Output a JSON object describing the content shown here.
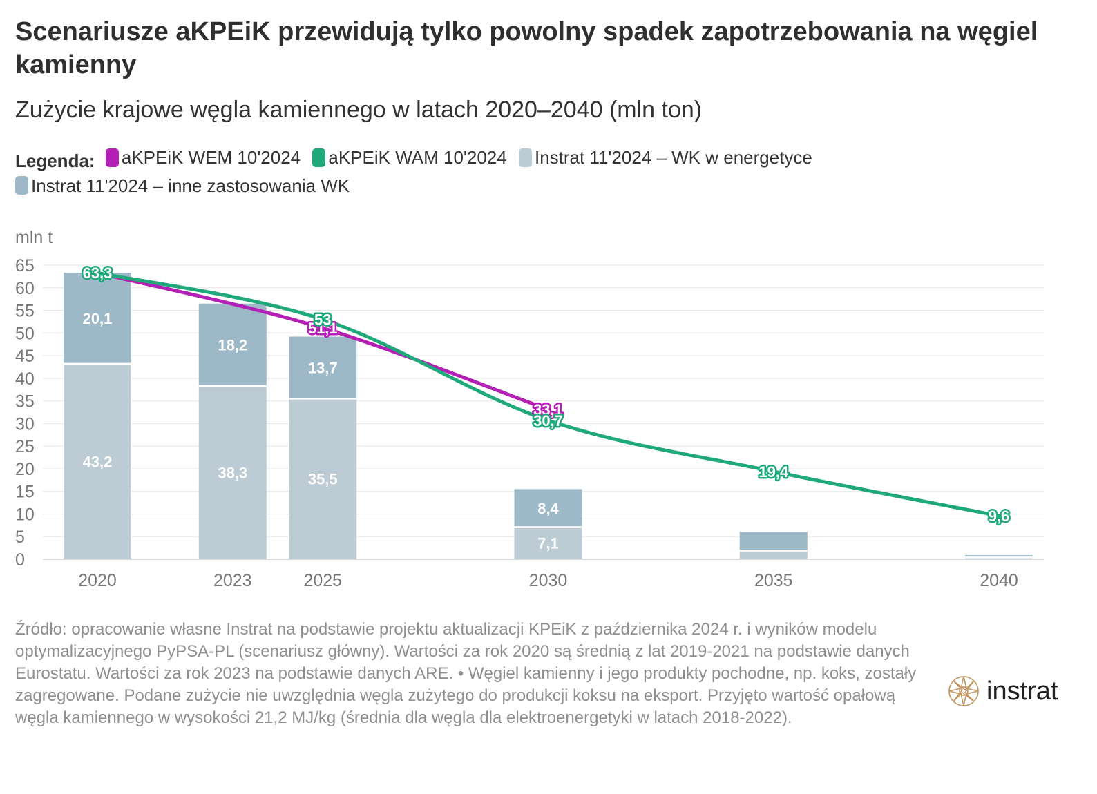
{
  "title": "Scenariusze aKPEiK przewidują tylko powolny spadek zapotrzebowania na węgiel kamienny",
  "subtitle": "Zużycie krajowe węgla kamiennego w latach 2020–2040 (mln ton)",
  "legend": {
    "label": "Legenda:",
    "items": [
      {
        "label": "aKPEiK WEM 10'2024",
        "color": "#b41fb5"
      },
      {
        "label": "aKPEiK WAM 10'2024",
        "color": "#1fa97a"
      },
      {
        "label": "Instrat 11'2024 – WK w energetyce",
        "color": "#bccbd4"
      },
      {
        "label": "Instrat 11'2024 – inne zastosowania WK",
        "color": "#9db9c8"
      }
    ]
  },
  "chart_data": {
    "type": "bar",
    "ylabel": "mln t",
    "ylim": [
      0,
      65
    ],
    "yticks": [
      0,
      5,
      10,
      15,
      20,
      25,
      30,
      35,
      40,
      45,
      50,
      55,
      60,
      65
    ],
    "categories": [
      "2020",
      "2023",
      "2025",
      "2030",
      "2035",
      "2040"
    ],
    "stacked_bars": [
      {
        "name": "Instrat 11'2024 – WK w energetyce",
        "color": "#bccbd4",
        "values": [
          43.2,
          38.3,
          35.5,
          7.1,
          1.9,
          0.4
        ],
        "labels": [
          "43,2",
          "38,3",
          "35,5",
          "7,1",
          "",
          ""
        ]
      },
      {
        "name": "Instrat 11'2024 – inne zastosowania WK",
        "color": "#9db9c8",
        "values": [
          20.1,
          18.2,
          13.7,
          8.4,
          4.2,
          0.5
        ],
        "labels": [
          "20,1",
          "18,2",
          "13,7",
          "8,4",
          "",
          ""
        ]
      }
    ],
    "lines": [
      {
        "name": "aKPEiK WEM 10'2024",
        "color": "#b41fb5",
        "x": [
          2020,
          2025,
          2030
        ],
        "y": [
          63.3,
          51.1,
          33.1
        ],
        "labels": [
          "",
          "51,1",
          "33,1"
        ]
      },
      {
        "name": "aKPEiK WAM 10'2024",
        "color": "#1fa97a",
        "x": [
          2020,
          2025,
          2030,
          2035,
          2040
        ],
        "y": [
          63.3,
          53,
          30.7,
          19.4,
          9.6
        ],
        "labels": [
          "63,3",
          "53",
          "30,7",
          "19,4",
          "9,6"
        ]
      }
    ]
  },
  "source": "Źródło: opracowanie własne Instrat na podstawie projektu aktualizacji KPEiK z października 2024 r. i wyników modelu optymalizacyjnego PyPSA-PL (scenariusz główny). Wartości za rok 2020 są średnią z lat 2019-2021 na podstawie danych Eurostatu. Wartości za rok 2023 na podstawie danych ARE. • Węgiel kamienny i jego produkty pochodne, np. koks, zostały zagregowane. Podane zużycie nie uwzględnia węgla zużytego do produkcji koksu na eksport. Przyjęto wartość opałową węgla kamiennego w wysokości 21,2 MJ/kg (średnia dla węgla dla elektroenergetyki w latach 2018-2022).",
  "brand": {
    "name": "instrat",
    "logo_color": "#c19560"
  }
}
